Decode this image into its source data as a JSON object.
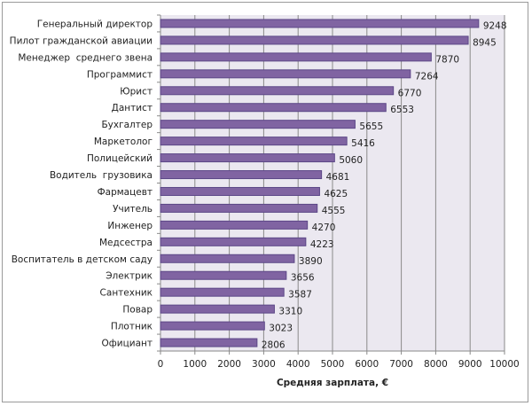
{
  "chart_data": {
    "type": "bar",
    "orientation": "horizontal",
    "categories": [
      "Генеральный директор",
      "Пилот гражданской авиации",
      "Менеджер  среднего звена",
      "Программист",
      "Юрист",
      "Дантист",
      "Бухгалтер",
      "Маркетолог",
      "Полицейский",
      "Водитель  грузовика",
      "Фармацевт",
      "Учитель",
      "Инженер",
      "Медсестра",
      "Воспитатель в детском саду",
      "Электрик",
      "Сантехник",
      "Повар",
      "Плотник",
      "Официант"
    ],
    "values": [
      9248,
      8945,
      7870,
      7264,
      6770,
      6553,
      5655,
      5416,
      5060,
      4681,
      4625,
      4555,
      4270,
      4223,
      3890,
      3656,
      3587,
      3310,
      3023,
      2806
    ],
    "title": "",
    "xlabel": "Средняя зарплата, €",
    "ylabel": "",
    "xlim": [
      0,
      10000
    ],
    "xticks": [
      0,
      1000,
      2000,
      3000,
      4000,
      5000,
      6000,
      7000,
      8000,
      9000,
      10000
    ],
    "grid": true,
    "legend": "none",
    "bar_color": "#8064a2",
    "bar_border": "#5c4787",
    "plot_bg": "#ebe8f0"
  }
}
